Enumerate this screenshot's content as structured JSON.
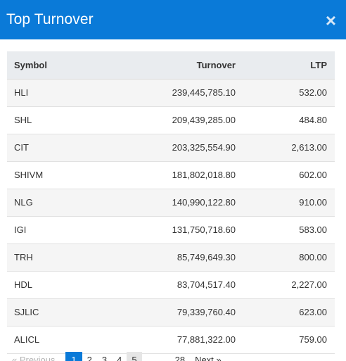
{
  "modal": {
    "title": "Top Turnover",
    "close_glyph": "×"
  },
  "table": {
    "headers": [
      "Symbol",
      "Turnover",
      "LTP"
    ],
    "rows": [
      {
        "symbol": "HLI",
        "turnover": "239,445,785.10",
        "ltp": "532.00"
      },
      {
        "symbol": "SHL",
        "turnover": "209,439,285.00",
        "ltp": "484.80"
      },
      {
        "symbol": "CIT",
        "turnover": "203,325,554.90",
        "ltp": "2,613.00"
      },
      {
        "symbol": "SHIVM",
        "turnover": "181,802,018.80",
        "ltp": "602.00"
      },
      {
        "symbol": "NLG",
        "turnover": "140,990,122.80",
        "ltp": "910.00"
      },
      {
        "symbol": "IGI",
        "turnover": "131,750,718.60",
        "ltp": "583.00"
      },
      {
        "symbol": "TRH",
        "turnover": "85,749,649.30",
        "ltp": "800.00"
      },
      {
        "symbol": "HDL",
        "turnover": "83,704,517.40",
        "ltp": "2,227.00"
      },
      {
        "symbol": "SJLIC",
        "turnover": "79,339,760.40",
        "ltp": "623.00"
      },
      {
        "symbol": "ALICL",
        "turnover": "77,881,322.00",
        "ltp": "759.00"
      }
    ]
  },
  "pagination": {
    "prev_label": "« Previous",
    "pages": [
      "1",
      "2",
      "3",
      "4",
      "5"
    ],
    "active_page": "1",
    "last_page": "28",
    "next_label": "Next »"
  },
  "colors": {
    "header_bg": "#0a7ad8",
    "active_page_bg": "#0a7ad8"
  },
  "icons": {
    "close": "close-icon"
  }
}
